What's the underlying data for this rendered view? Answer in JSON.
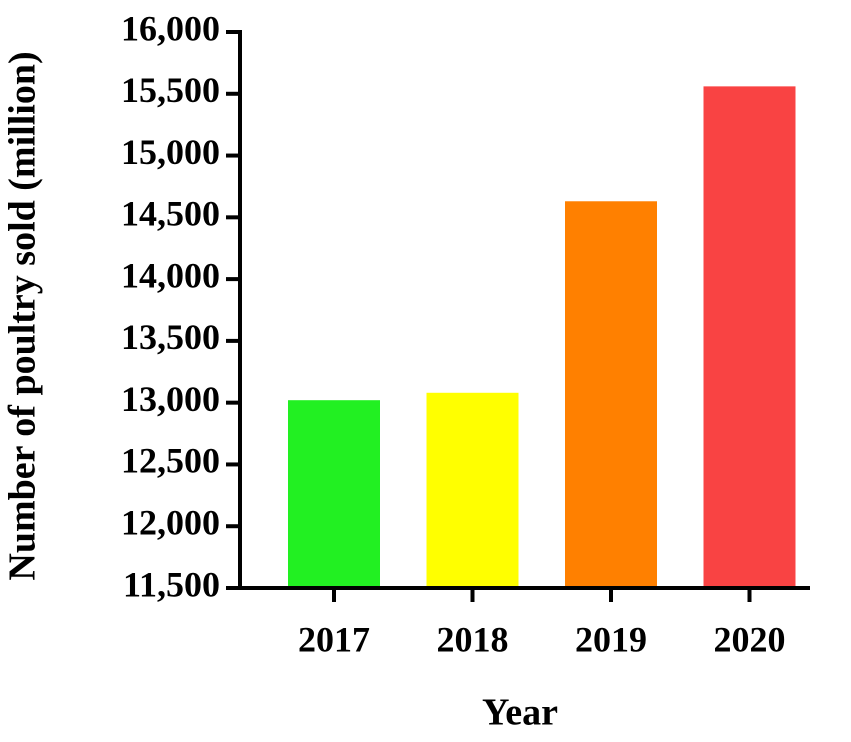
{
  "chart_data": {
    "type": "bar",
    "x_label": "Year",
    "y_label": "Number of poultry sold (million)",
    "categories": [
      "2017",
      "2018",
      "2019",
      "2020"
    ],
    "values": [
      13020,
      13080,
      14630,
      15560
    ],
    "colors": [
      "#22f022",
      "#ffff00",
      "#ff8000",
      "#f94343"
    ],
    "ylim": [
      11500,
      16000
    ],
    "yticks": [
      {
        "value": 11500,
        "label": "11,500"
      },
      {
        "value": 12000,
        "label": "12,000"
      },
      {
        "value": 12500,
        "label": "12,500"
      },
      {
        "value": 13000,
        "label": "13,000"
      },
      {
        "value": 13500,
        "label": "13,500"
      },
      {
        "value": 14000,
        "label": "14,000"
      },
      {
        "value": 14500,
        "label": "14,500"
      },
      {
        "value": 15000,
        "label": "15,000"
      },
      {
        "value": 15500,
        "label": "15,500"
      },
      {
        "value": 16000,
        "label": "16,000"
      }
    ],
    "grid": false
  }
}
